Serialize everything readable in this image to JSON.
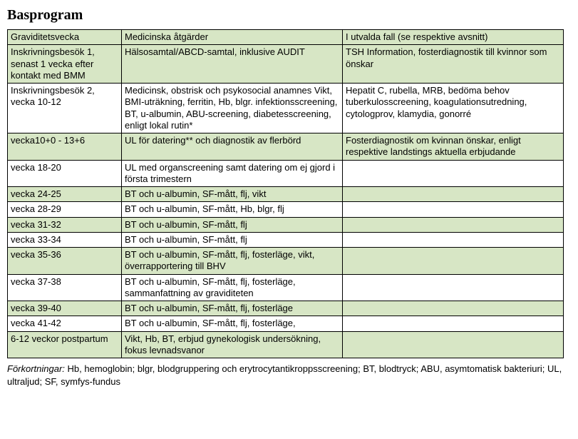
{
  "title": "Basprogram",
  "columns": [
    "Graviditetsvecka",
    "Medicinska åtgärder",
    "I utvalda fall (se respektive avsnitt)"
  ],
  "rows": [
    {
      "green": true,
      "cells": [
        "Inskrivningsbesök 1, senast 1 vecka efter kontakt med BMM",
        "Hälsosamtal/ABCD-samtal, inklusive AUDIT",
        "TSH Information, fosterdiagnostik till kvinnor som önskar"
      ]
    },
    {
      "green": false,
      "cells": [
        "Inskrivningsbesök 2, vecka 10-12",
        "Medicinsk, obstrisk och psykosocial anamnes Vikt, BMI-uträkning, ferritin, Hb, blgr. infektionsscreening, BT, u-albumin, ABU-screening, diabetesscreening, enligt lokal rutin*",
        "Hepatit C, rubella, MRB, bedöma behov tuberkulosscreening, koagulationsutredning, cytologprov, klamydia, gonorré"
      ]
    },
    {
      "green": true,
      "cells": [
        "vecka10+0 - 13+6",
        "UL för datering** och diagnostik av flerbörd",
        "Fosterdiagnostik om kvinnan önskar, enligt respektive landstings aktuella erbjudande"
      ]
    },
    {
      "green": false,
      "cells": [
        "vecka 18-20",
        "UL med organscreening samt datering om ej gjord i första trimestern",
        ""
      ]
    },
    {
      "green": true,
      "cells": [
        "vecka 24-25",
        "BT  och u-albumin, SF-mått, flj, vikt",
        ""
      ]
    },
    {
      "green": false,
      "cells": [
        "vecka 28-29",
        "BT  och u-albumin, SF-mått, Hb, blgr, flj",
        ""
      ]
    },
    {
      "green": true,
      "cells": [
        "vecka 31-32",
        "BT  och u-albumin, SF-mått, flj",
        ""
      ]
    },
    {
      "green": false,
      "cells": [
        "vecka 33-34",
        "BT  och u-albumin, SF-mått, flj",
        ""
      ]
    },
    {
      "green": true,
      "cells": [
        "vecka 35-36",
        "BT  och u-albumin, SF-mått, flj, fosterläge, vikt, överrapportering till BHV",
        ""
      ]
    },
    {
      "green": false,
      "cells": [
        "vecka 37-38",
        "BT  och u-albumin, SF-mått, flj, fosterläge, sammanfattning av graviditeten",
        ""
      ]
    },
    {
      "green": true,
      "cells": [
        "vecka 39-40",
        "BT  och u-albumin, SF-mått, flj, fosterläge",
        ""
      ]
    },
    {
      "green": false,
      "cells": [
        "vecka 41-42",
        "BT  och u-albumin, SF-mått, flj, fosterläge,",
        ""
      ]
    },
    {
      "green": true,
      "cells": [
        "6-12 veckor postpartum",
        "Vikt, Hb, BT, erbjud gynekologisk undersökning, fokus levnadsvanor",
        ""
      ]
    }
  ],
  "footnote_label": "Förkortningar:",
  "footnote_text": " Hb, hemoglobin; blgr, blodgruppering och erytrocytantikroppsscreening; BT, blodtryck; ABU, asymtomatisk bakteriuri; UL, ultraljud; SF, symfys-fundus",
  "style": {
    "row_bg_green": "#d7e6c5",
    "row_bg_white": "#ffffff",
    "border_color": "#000000",
    "title_font": "Georgia",
    "body_font": "Arial",
    "title_fontsize": 20,
    "body_fontsize": 13
  }
}
